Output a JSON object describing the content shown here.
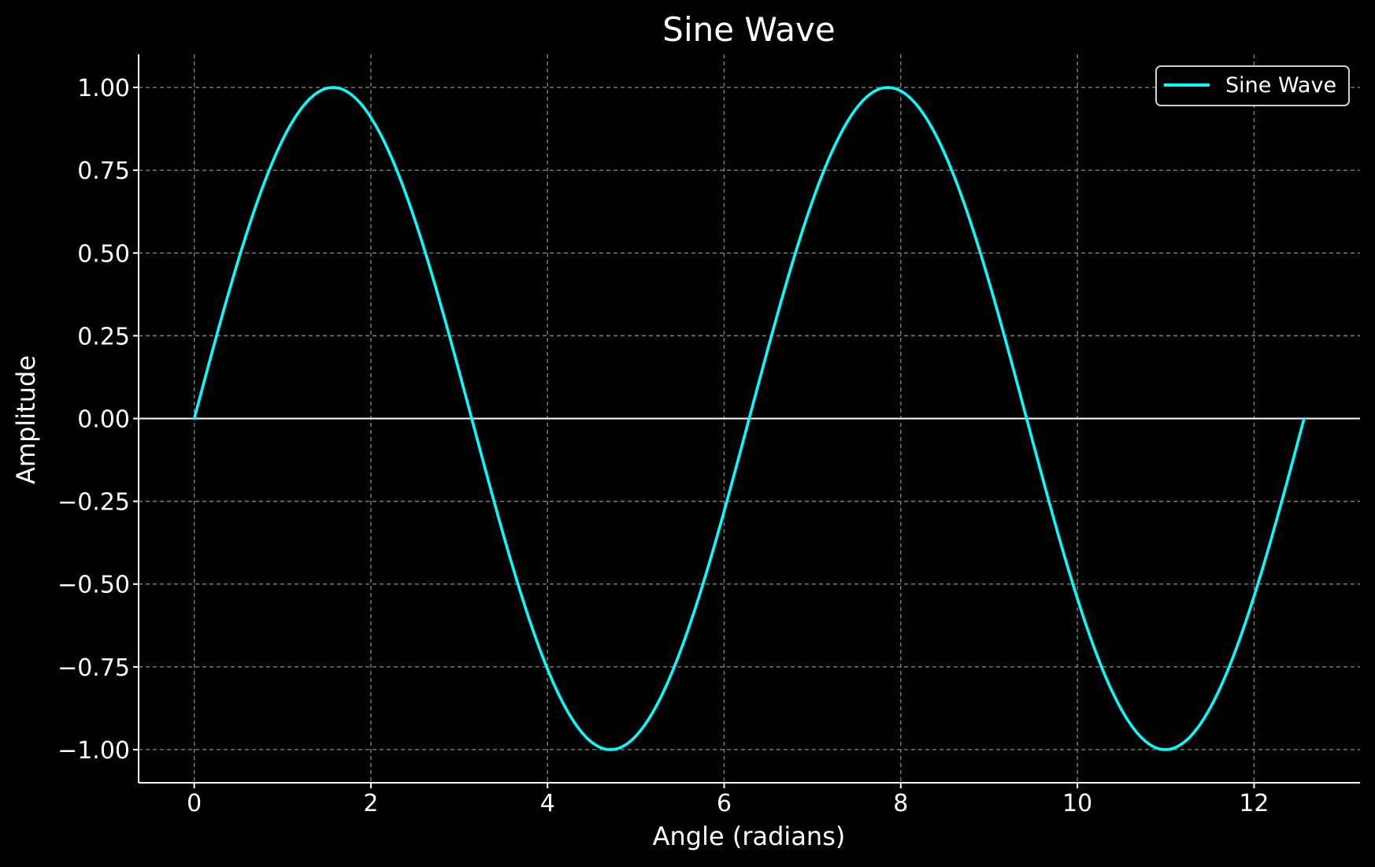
{
  "chart_data": {
    "type": "line",
    "title": "Sine Wave",
    "xlabel": "Angle (radians)",
    "ylabel": "Amplitude",
    "xlim": [
      -0.63,
      13.2
    ],
    "ylim": [
      -1.1,
      1.1
    ],
    "x_ticks": [
      0,
      2,
      4,
      6,
      8,
      10,
      12
    ],
    "x_tick_labels": [
      "0",
      "2",
      "4",
      "6",
      "8",
      "10",
      "12"
    ],
    "y_ticks": [
      1.0,
      0.75,
      0.5,
      0.25,
      0.0,
      -0.25,
      -0.5,
      -0.75,
      -1.0
    ],
    "y_tick_labels": [
      "1.00",
      "0.75",
      "0.50",
      "0.25",
      "0.00",
      "−0.25",
      "−0.50",
      "−0.75",
      "−1.00"
    ],
    "grid": true,
    "grid_style": "dashed",
    "zero_line": true,
    "legend_position": "top-right",
    "background_color": "#000000",
    "text_color": "#ffffff",
    "grid_color": "#808080",
    "series": [
      {
        "name": "Sine Wave",
        "color": "#00ffff",
        "x_start": 0,
        "x_end": 12.566,
        "x": [
          0.0,
          0.524,
          1.047,
          1.571,
          2.094,
          2.618,
          3.142,
          3.665,
          4.189,
          4.712,
          5.236,
          5.76,
          6.283,
          6.807,
          7.33,
          7.854,
          8.378,
          8.901,
          9.425,
          9.948,
          10.472,
          10.996,
          11.519,
          12.043,
          12.566
        ],
        "y": [
          0.0,
          0.5,
          0.866,
          1.0,
          0.866,
          0.5,
          0.0,
          -0.5,
          -0.866,
          -1.0,
          -0.866,
          -0.5,
          0.0,
          0.5,
          0.866,
          1.0,
          0.866,
          0.5,
          0.0,
          -0.5,
          -0.866,
          -1.0,
          -0.866,
          -0.5,
          0.0
        ]
      }
    ]
  }
}
